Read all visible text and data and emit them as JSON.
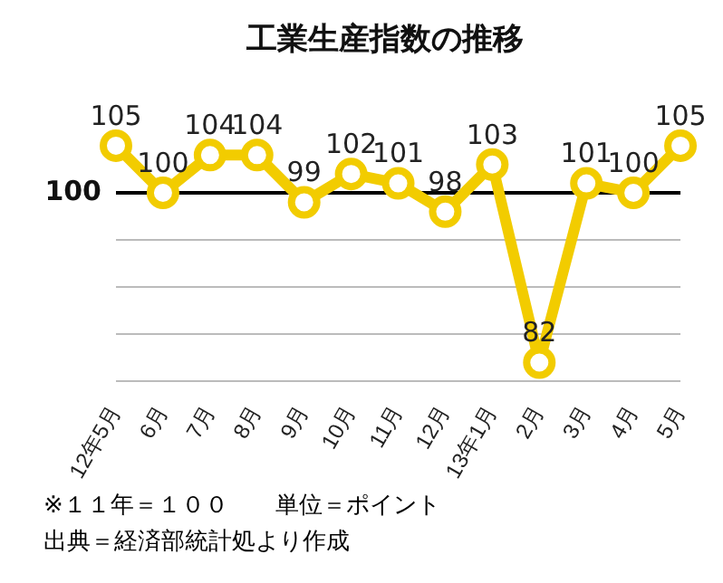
{
  "chart_data": {
    "type": "line",
    "title": "工業生産指数の推移",
    "categories": [
      "12年5月",
      "6月",
      "7月",
      "8月",
      "9月",
      "10月",
      "11月",
      "12月",
      "13年1月",
      "2月",
      "3月",
      "4月",
      "5月"
    ],
    "series": [
      {
        "color": "#f2cc00",
        "values": [
          105,
          100,
          104,
          104,
          99,
          102,
          101,
          98,
          103,
          82,
          101,
          100,
          105
        ]
      }
    ],
    "yticks": [
      {
        "value": 80,
        "label": null
      },
      {
        "value": 85,
        "label": null
      },
      {
        "value": 90,
        "label": null
      },
      {
        "value": 95,
        "label": null
      },
      {
        "value": 100,
        "label": null
      }
    ],
    "ref_lines": [
      {
        "axis": "y",
        "value": 100,
        "label": "100",
        "color": "#000000"
      }
    ],
    "grid": "y",
    "marker": "circle",
    "line_style": "solid",
    "data_labels": true,
    "legend": false,
    "tick_labels": "xy",
    "annotations": [
      "※１１年＝１００　　単位＝ポイント",
      "出典＝経済部統計処より作成"
    ]
  }
}
